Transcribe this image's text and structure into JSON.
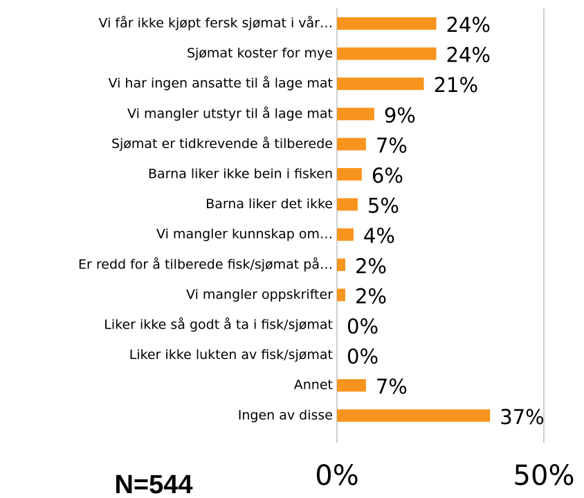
{
  "chart_data": {
    "type": "bar",
    "orientation": "horizontal",
    "categories": [
      "Vi får ikke kjøpt fersk sjømat i vår…",
      "Sjømat koster for mye",
      "Vi har ingen ansatte til å lage mat",
      "Vi mangler utstyr til å lage mat",
      "Sjømat er tidkrevende å tilberede",
      "Barna liker ikke bein i fisken",
      "Barna liker det ikke",
      "Vi mangler kunnskap om…",
      "Er redd for å tilberede fisk/sjømat på…",
      "Vi mangler oppskrifter",
      "Liker ikke så godt å ta i fisk/sjømat",
      "Liker ikke lukten av fisk/sjømat",
      "Annet",
      "Ingen av disse"
    ],
    "values": [
      24,
      24,
      21,
      9,
      7,
      6,
      5,
      4,
      2,
      2,
      0,
      0,
      7,
      37
    ],
    "value_labels": [
      "24%",
      "24%",
      "21%",
      "9%",
      "7%",
      "6%",
      "5%",
      "4%",
      "2%",
      "2%",
      "0%",
      "0%",
      "7%",
      "37%"
    ],
    "color": "#f7941d",
    "xlim": [
      0,
      50
    ],
    "xticks": [
      {
        "value": 0,
        "label": "0%"
      },
      {
        "value": 50,
        "label": "50%"
      }
    ],
    "grid": true,
    "annotation": "N=544"
  }
}
